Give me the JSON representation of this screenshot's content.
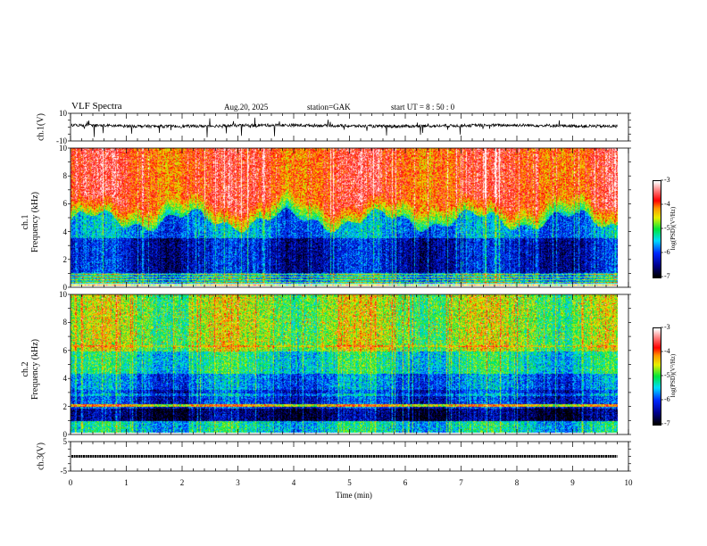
{
  "header": {
    "title": "VLF  Spectra",
    "date": "Aug.20, 2025",
    "station": "station=GAK",
    "start": "start  UT  =   8  : 50 : 0"
  },
  "chart_data": {
    "type": "heatmap",
    "xlabel": "Time  (min)",
    "xlim": [
      0,
      10
    ],
    "x_ticks": [
      "0",
      "1",
      "2",
      "3",
      "4",
      "5",
      "6",
      "7",
      "8",
      "9",
      "10"
    ],
    "data_end_min": 9.8,
    "panels": [
      {
        "name": "ch1-waveform",
        "type": "line",
        "ylabel": "ch.1(V)",
        "ylim": [
          -10,
          10
        ],
        "y_ticks": [
          "10",
          "-10"
        ]
      },
      {
        "name": "ch1-spectrogram",
        "type": "heatmap",
        "ylabel_top": "ch.1",
        "ylabel": "Frequency  (kHz)",
        "ylim": [
          0,
          10
        ],
        "y_ticks": [
          "0",
          "2",
          "4",
          "6",
          "8",
          "10"
        ],
        "colorbar": {
          "label": "log(PSD)(V²/Hz)",
          "range": [
            -7,
            -3
          ],
          "ticks": [
            "-3",
            "-4",
            "-5",
            "-6",
            "-7"
          ]
        }
      },
      {
        "name": "ch2-spectrogram",
        "type": "heatmap",
        "ylabel_top": "ch.2",
        "ylabel": "Frequency  (kHz)",
        "ylim": [
          0,
          10
        ],
        "y_ticks": [
          "0",
          "2",
          "4",
          "6",
          "8",
          "10"
        ],
        "colorbar": {
          "label": "log(PSD)(V²/Hz)",
          "range": [
            -7,
            -3
          ],
          "ticks": [
            "-3",
            "-4",
            "-5",
            "-6",
            "-7"
          ]
        }
      },
      {
        "name": "ch3-waveform",
        "type": "line",
        "ylabel": "ch.3(V)",
        "ylim": [
          -5,
          5
        ],
        "y_ticks": [
          "5",
          "-5"
        ],
        "level": 0
      }
    ]
  }
}
